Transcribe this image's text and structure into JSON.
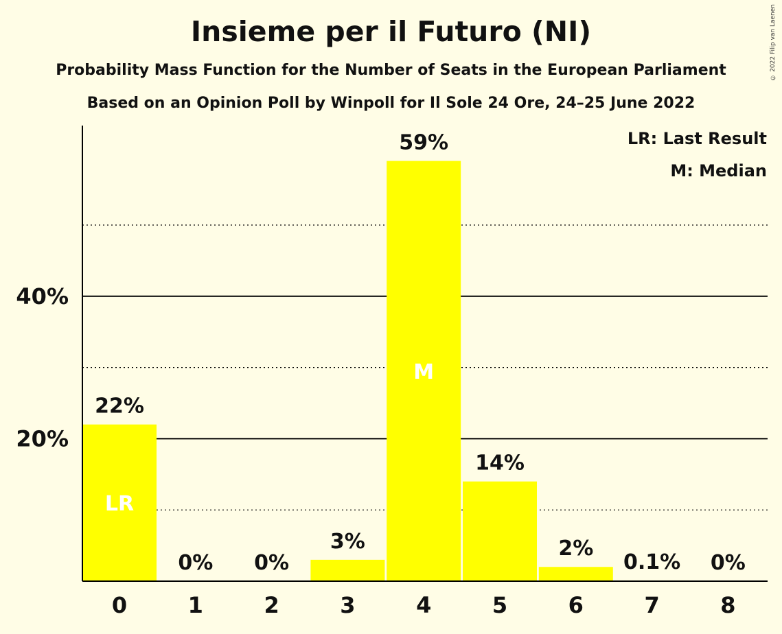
{
  "header": {
    "title": "Insieme per il Futuro (NI)",
    "subtitle1": "Probability Mass Function for the Number of Seats in the European Parliament",
    "subtitle2": "Based on an Opinion Poll by Winpoll for Il Sole 24 Ore, 24–25 June 2022",
    "copyright": "© 2022 Filip van Laenen"
  },
  "legend": {
    "lr": "LR: Last Result",
    "median": "M: Median"
  },
  "colors": {
    "background": "#FFFDE6",
    "bar": "#FFFF00",
    "axis": "#000000"
  },
  "chart_data": {
    "type": "bar",
    "categories": [
      "0",
      "1",
      "2",
      "3",
      "4",
      "5",
      "6",
      "7",
      "8"
    ],
    "values": [
      22,
      0,
      0,
      3,
      59,
      14,
      2,
      0.1,
      0
    ],
    "data_labels": [
      "22%",
      "0%",
      "0%",
      "3%",
      "59%",
      "14%",
      "2%",
      "0.1%",
      "0%"
    ],
    "inner_labels": [
      "LR",
      "",
      "",
      "",
      "M",
      "",
      "",
      "",
      ""
    ],
    "ylim": [
      0,
      64
    ],
    "major_ticks": [
      20,
      40
    ],
    "major_tick_labels": [
      "20%",
      "40%"
    ],
    "minor_gridlines": [
      10,
      30,
      50
    ],
    "xlabel": "",
    "ylabel": "",
    "legend_position": "top-right"
  }
}
